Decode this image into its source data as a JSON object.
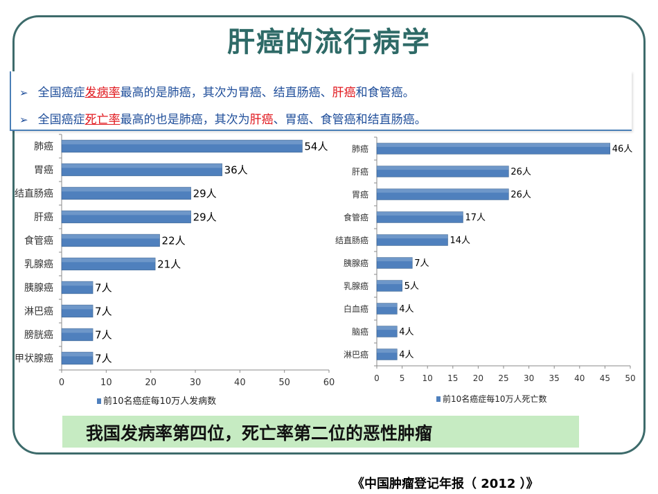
{
  "title": "肝癌的流行病学",
  "bullets": {
    "line1": {
      "a": "全国癌症",
      "b": "发病率",
      "c": "最高的是肺癌，其次为胃癌、结直肠癌、",
      "d": "肝癌",
      "e": "和食管癌。"
    },
    "line2": {
      "a": "全国癌症",
      "b": "死亡率",
      "c": "最高的也是肺癌，其次为",
      "d": "肝癌",
      "e": "、胃癌、食管癌和结直肠癌。"
    }
  },
  "bar_color": "#4f80bd",
  "chart_data": [
    {
      "type": "bar",
      "orientation": "horizontal",
      "categories": [
        "肺癌",
        "胃癌",
        "结直肠癌",
        "肝癌",
        "食管癌",
        "乳腺癌",
        "胰腺癌",
        "淋巴癌",
        "膀胱癌",
        "甲状腺癌"
      ],
      "values": [
        54,
        36,
        29,
        29,
        22,
        21,
        7,
        7,
        7,
        7
      ],
      "data_labels": [
        "54人",
        "36人",
        "29人",
        "29人",
        "22人",
        "21人",
        "7人",
        "7人",
        "7人",
        "7人"
      ],
      "series": [
        {
          "name": "前10名癌症每10万人发病数",
          "values": [
            54,
            36,
            29,
            29,
            22,
            21,
            7,
            7,
            7,
            7
          ]
        }
      ],
      "xlim": [
        0,
        60
      ],
      "xticks": [
        "0",
        "10",
        "20",
        "30",
        "40",
        "50",
        "60"
      ],
      "legend": "bottom"
    },
    {
      "type": "bar",
      "orientation": "horizontal",
      "categories": [
        "肺癌",
        "肝癌",
        "胃癌",
        "食管癌",
        "结直肠癌",
        "胰腺癌",
        "乳腺癌",
        "白血癌",
        "脑癌",
        "淋巴癌"
      ],
      "values": [
        46,
        26,
        26,
        17,
        14,
        7,
        5,
        4,
        4,
        4
      ],
      "data_labels": [
        "46人",
        "26人",
        "26人",
        "17人",
        "14人",
        "7人",
        "5人",
        "4人",
        "4人",
        "4人"
      ],
      "series": [
        {
          "name": "前10名癌症每10万人死亡数",
          "values": [
            46,
            26,
            26,
            17,
            14,
            7,
            5,
            4,
            4,
            4
          ]
        }
      ],
      "xlim": [
        0,
        50
      ],
      "xticks": [
        "0",
        "5",
        "10",
        "15",
        "20",
        "25",
        "30",
        "35",
        "40",
        "45",
        "50"
      ],
      "legend": "bottom"
    }
  ],
  "banner": "我国发病率第四位，死亡率第二位的恶性肿瘤",
  "source": "《中国肿瘤登记年报（ 2012 ）》"
}
